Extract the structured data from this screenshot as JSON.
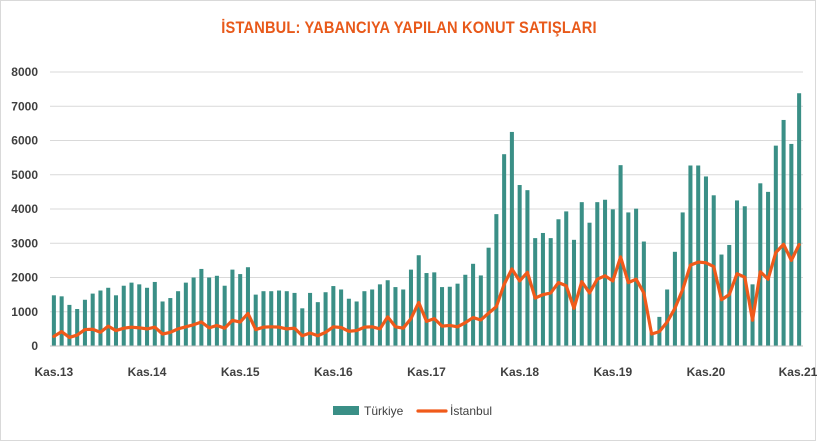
{
  "chart_data": {
    "type": "bar",
    "title": "İSTANBUL: YABANCIYA YAPILAN KONUT SATIŞLARI",
    "ylim": [
      0,
      8000
    ],
    "y_ticks": [
      "0",
      "1000",
      "2000",
      "3000",
      "4000",
      "5000",
      "6000",
      "7000",
      "8000"
    ],
    "x_tick_labels": [
      "Kas.13",
      "Kas.14",
      "Kas.15",
      "Kas.16",
      "Kas.17",
      "Kas.18",
      "Kas.19",
      "Kas.20",
      "Kas.21"
    ],
    "x_tick_every": 12,
    "grid": true,
    "legend_position": "bottom",
    "series": [
      {
        "name": "Türkiye",
        "render": "bar",
        "color": "#3a8f86",
        "values": [
          1480,
          1450,
          1200,
          1080,
          1350,
          1530,
          1620,
          1700,
          1480,
          1760,
          1850,
          1800,
          1700,
          1870,
          1300,
          1400,
          1600,
          1850,
          2000,
          2250,
          2000,
          2050,
          1760,
          2230,
          2100,
          2300,
          1500,
          1600,
          1600,
          1620,
          1600,
          1550,
          1100,
          1550,
          1280,
          1570,
          1750,
          1650,
          1380,
          1300,
          1600,
          1650,
          1800,
          1920,
          1720,
          1650,
          2230,
          2650,
          2130,
          2150,
          1720,
          1730,
          1820,
          2080,
          2400,
          2060,
          2870,
          3850,
          5600,
          6250,
          4700,
          4550,
          3150,
          3300,
          3150,
          3700,
          3930,
          3100,
          4200,
          3600,
          4200,
          4270,
          3990,
          5280,
          3900,
          4010,
          3050,
          400,
          850,
          1650,
          2750,
          3900,
          5270,
          5270,
          4950,
          4400,
          2670,
          2950,
          4250,
          4080,
          1800,
          4750,
          4500,
          5850,
          6600,
          5900,
          7380
        ],
        "show_in_legend": true
      },
      {
        "name": "İstanbul",
        "render": "line",
        "color": "#f05a1a",
        "values": [
          280,
          420,
          250,
          320,
          480,
          490,
          400,
          580,
          450,
          520,
          550,
          530,
          500,
          550,
          350,
          400,
          500,
          560,
          620,
          700,
          530,
          600,
          520,
          750,
          700,
          950,
          480,
          550,
          560,
          550,
          500,
          520,
          300,
          380,
          300,
          400,
          560,
          540,
          430,
          450,
          550,
          560,
          500,
          850,
          560,
          520,
          800,
          1270,
          720,
          800,
          580,
          600,
          560,
          680,
          830,
          760,
          960,
          1150,
          1800,
          2250,
          1900,
          2150,
          1400,
          1500,
          1550,
          1850,
          1760,
          1100,
          1880,
          1550,
          1950,
          2050,
          1900,
          2600,
          1850,
          1950,
          1550,
          350,
          420,
          700,
          1100,
          1650,
          2360,
          2450,
          2430,
          2320,
          1350,
          1500,
          2110,
          2010,
          750,
          2170,
          1950,
          2730,
          2970,
          2500,
          2960
        ],
        "show_in_legend": true
      }
    ]
  }
}
